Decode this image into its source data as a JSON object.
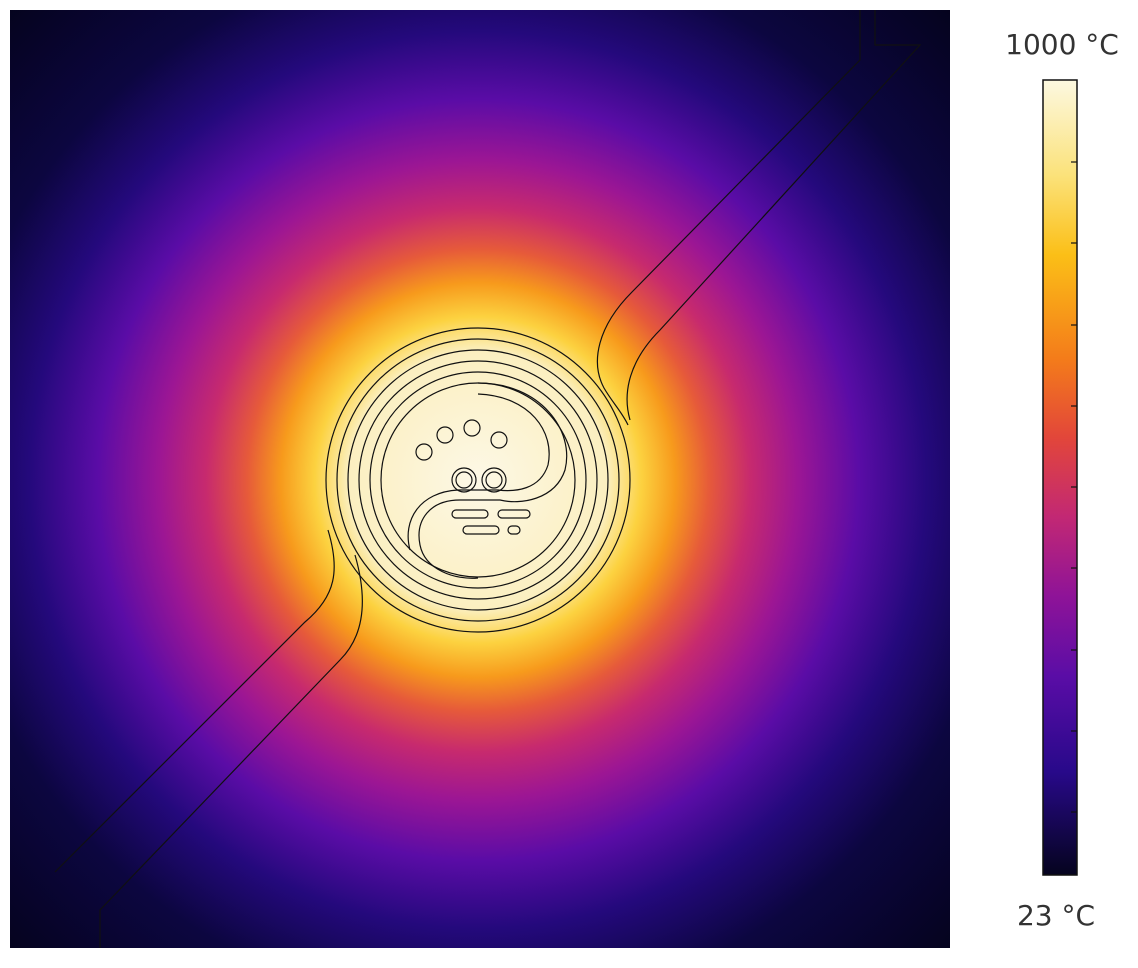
{
  "colorbar": {
    "max_label": "1000 °C",
    "min_label": "23 °C"
  }
}
